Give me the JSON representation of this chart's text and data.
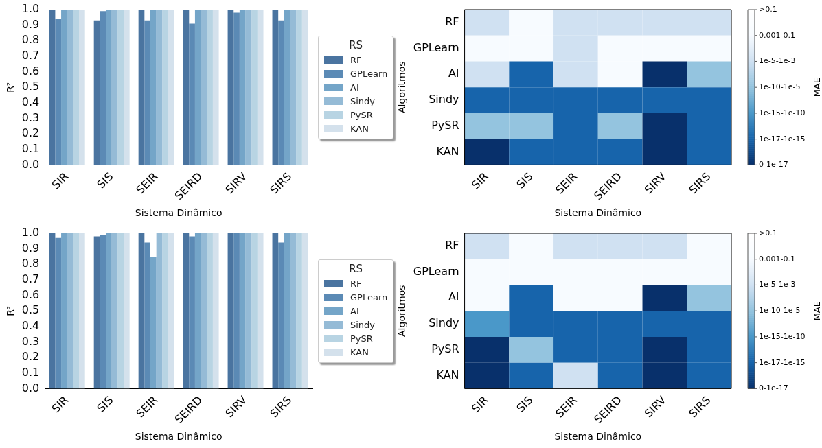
{
  "chart_data": [
    {
      "type": "bar",
      "xlabel": "Sistema Dinâmico",
      "ylabel": "R²",
      "legend_title": "RS",
      "legend": "right",
      "categories": [
        "SIR",
        "SIS",
        "SEIR",
        "SEIRD",
        "SIRV",
        "SIRS"
      ],
      "series": [
        {
          "name": "RF",
          "color": "#4a74a0",
          "values": [
            1.0,
            0.93,
            1.0,
            1.0,
            1.0,
            1.0
          ]
        },
        {
          "name": "GPLearn",
          "color": "#5b8ab5",
          "values": [
            0.94,
            0.99,
            0.93,
            0.91,
            0.98,
            0.93
          ]
        },
        {
          "name": "AI",
          "color": "#74a5c8",
          "values": [
            1.0,
            1.0,
            1.0,
            1.0,
            1.0,
            1.0
          ]
        },
        {
          "name": "Sindy",
          "color": "#95bbd6",
          "values": [
            1.0,
            1.0,
            1.0,
            1.0,
            1.0,
            1.0
          ]
        },
        {
          "name": "PySR",
          "color": "#b8d4e3",
          "values": [
            1.0,
            1.0,
            1.0,
            1.0,
            1.0,
            1.0
          ]
        },
        {
          "name": "KAN",
          "color": "#d4e1ec",
          "values": [
            1.0,
            1.0,
            1.0,
            1.0,
            1.0,
            1.0
          ]
        }
      ],
      "ylim": [
        0,
        1
      ],
      "yticks": [
        {
          "value": 0,
          "label": "0.0"
        },
        {
          "value": 0.1,
          "label": "0.1"
        },
        {
          "value": 0.2,
          "label": "0.2"
        },
        {
          "value": 0.3,
          "label": "0.3"
        },
        {
          "value": 0.4,
          "label": "0.4"
        },
        {
          "value": 0.5,
          "label": "0.5"
        },
        {
          "value": 0.6,
          "label": "0.6"
        },
        {
          "value": 0.7,
          "label": "0.7"
        },
        {
          "value": 0.8,
          "label": "0.8"
        },
        {
          "value": 0.9,
          "label": "0.9"
        },
        {
          "value": 1,
          "label": "1.0"
        }
      ]
    },
    {
      "type": "heatmap",
      "xlabel": "Sistema Dinâmico",
      "ylabel": "Algoritmos",
      "clabel": "MAE",
      "categories": [
        "SIR",
        "SIS",
        "SEIR",
        "SEIRD",
        "SIRV",
        "SIRS"
      ],
      "y_categories": [
        "RF",
        "GPLearn",
        "AI",
        "Sindy",
        "PySR",
        "KAN"
      ],
      "cells": [
        [
          4,
          5,
          4,
          4,
          4,
          4
        ],
        [
          5,
          5,
          4,
          5,
          5,
          5
        ],
        [
          4,
          1,
          4,
          5,
          0,
          3
        ],
        [
          1,
          1,
          1,
          1,
          1,
          1
        ],
        [
          3,
          3,
          1,
          3,
          0,
          1
        ],
        [
          0,
          1,
          1,
          1,
          0,
          1
        ]
      ],
      "clim": [
        0,
        6
      ],
      "cticks": [
        {
          "value": 0,
          "label": "0-1e-17"
        },
        {
          "value": 1,
          "label": "1e-17-1e-15"
        },
        {
          "value": 2,
          "label": "1e-15-1e-10"
        },
        {
          "value": 3,
          "label": "1e-10-1e-5"
        },
        {
          "value": 4,
          "label": "1e-5-1e-3"
        },
        {
          "value": 5,
          "label": "0.001-0.1"
        },
        {
          "value": 6,
          "label": ">0.1"
        }
      ]
    },
    {
      "type": "bar",
      "xlabel": "Sistema Dinâmico",
      "ylabel": "R²",
      "legend_title": "RS",
      "legend": "right",
      "categories": [
        "SIR",
        "SIS",
        "SEIR",
        "SEIRD",
        "SIRV",
        "SIRS"
      ],
      "series": [
        {
          "name": "RF",
          "color": "#4a74a0",
          "values": [
            1.0,
            0.98,
            1.0,
            1.0,
            1.0,
            1.0
          ]
        },
        {
          "name": "GPLearn",
          "color": "#5b8ab5",
          "values": [
            0.97,
            0.99,
            0.94,
            0.98,
            1.0,
            0.94
          ]
        },
        {
          "name": "AI",
          "color": "#74a5c8",
          "values": [
            1.0,
            1.0,
            0.85,
            1.0,
            1.0,
            1.0
          ]
        },
        {
          "name": "Sindy",
          "color": "#95bbd6",
          "values": [
            1.0,
            1.0,
            1.0,
            1.0,
            1.0,
            1.0
          ]
        },
        {
          "name": "PySR",
          "color": "#b8d4e3",
          "values": [
            1.0,
            1.0,
            1.0,
            1.0,
            1.0,
            1.0
          ]
        },
        {
          "name": "KAN",
          "color": "#d4e1ec",
          "values": [
            1.0,
            1.0,
            1.0,
            1.0,
            1.0,
            1.0
          ]
        }
      ],
      "ylim": [
        0,
        1
      ],
      "yticks": [
        {
          "value": 0,
          "label": "0.0"
        },
        {
          "value": 0.1,
          "label": "0.1"
        },
        {
          "value": 0.2,
          "label": "0.2"
        },
        {
          "value": 0.3,
          "label": "0.3"
        },
        {
          "value": 0.4,
          "label": "0.4"
        },
        {
          "value": 0.5,
          "label": "0.5"
        },
        {
          "value": 0.6,
          "label": "0.6"
        },
        {
          "value": 0.7,
          "label": "0.7"
        },
        {
          "value": 0.8,
          "label": "0.8"
        },
        {
          "value": 0.9,
          "label": "0.9"
        },
        {
          "value": 1,
          "label": "1.0"
        }
      ]
    },
    {
      "type": "heatmap",
      "xlabel": "Sistema Dinâmico",
      "ylabel": "Algoritmos",
      "clabel": "MAE",
      "categories": [
        "SIR",
        "SIS",
        "SEIR",
        "SEIRD",
        "SIRV",
        "SIRS"
      ],
      "y_categories": [
        "RF",
        "GPLearn",
        "AI",
        "Sindy",
        "PySR",
        "KAN"
      ],
      "cells": [
        [
          4,
          5,
          4,
          4,
          4,
          5
        ],
        [
          5,
          5,
          5,
          5,
          5,
          5
        ],
        [
          5,
          1,
          5,
          5,
          0,
          3
        ],
        [
          2,
          1,
          1,
          1,
          1,
          1
        ],
        [
          0,
          3,
          1,
          1,
          0,
          1
        ],
        [
          0,
          1,
          4,
          1,
          0,
          1
        ]
      ],
      "clim": [
        0,
        6
      ],
      "cticks": [
        {
          "value": 0,
          "label": "0-1e-17"
        },
        {
          "value": 1,
          "label": "1e-17-1e-15"
        },
        {
          "value": 2,
          "label": "1e-15-1e-10"
        },
        {
          "value": 3,
          "label": "1e-10-1e-5"
        },
        {
          "value": 4,
          "label": "1e-5-1e-3"
        },
        {
          "value": 5,
          "label": "0.001-0.1"
        },
        {
          "value": 6,
          "label": ">0.1"
        }
      ]
    }
  ]
}
